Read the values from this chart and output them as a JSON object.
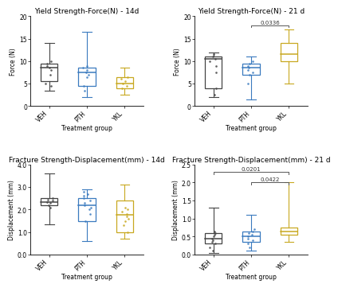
{
  "plots": [
    {
      "title": "Yield Strength-Force(N) - 14d",
      "ylabel": "Force (N)",
      "xlabel": "Treatment group",
      "ylim": [
        0,
        20
      ],
      "yticks": [
        0,
        5,
        10,
        15,
        20
      ],
      "groups": [
        "VEH",
        "PTH",
        "YKL"
      ],
      "colors": [
        "#444444",
        "#3a7abf",
        "#c8a820"
      ],
      "box_data": [
        {
          "median": 8.5,
          "q1": 5.5,
          "q3": 9.5,
          "whislo": 3.5,
          "whishi": 14.0,
          "points": [
            4.5,
            5.0,
            7.0,
            8.0,
            8.5,
            9.0,
            9.5,
            10.0
          ]
        },
        {
          "median": 7.5,
          "q1": 4.5,
          "q3": 8.5,
          "whislo": 2.0,
          "whishi": 16.5,
          "points": [
            3.5,
            4.5,
            6.5,
            7.0,
            7.5,
            8.0,
            8.5,
            9.0
          ]
        },
        {
          "median": 5.0,
          "q1": 4.0,
          "q3": 6.5,
          "whislo": 2.5,
          "whishi": 8.5,
          "points": [
            4.0,
            4.5,
            5.0,
            5.5,
            6.0,
            6.5
          ]
        }
      ],
      "significance": []
    },
    {
      "title": "Yield Strength-Force(N) - 21 d",
      "ylabel": "Force (N)",
      "xlabel": "Treatment group",
      "ylim": [
        0,
        20
      ],
      "yticks": [
        0,
        5,
        10,
        15,
        20
      ],
      "groups": [
        "VEH",
        "PTH",
        "YKL"
      ],
      "colors": [
        "#444444",
        "#3a7abf",
        "#c8a820"
      ],
      "box_data": [
        {
          "median": 10.5,
          "q1": 4.0,
          "q3": 11.0,
          "whislo": 2.0,
          "whishi": 12.0,
          "points": [
            2.5,
            4.0,
            7.5,
            9.0,
            10.0,
            10.5,
            11.0,
            11.5
          ]
        },
        {
          "median": 8.5,
          "q1": 7.0,
          "q3": 9.5,
          "whislo": 1.5,
          "whishi": 11.0,
          "points": [
            5.0,
            7.0,
            7.5,
            8.0,
            8.5,
            9.0,
            9.5,
            10.0
          ]
        },
        {
          "median": 11.5,
          "q1": 10.0,
          "q3": 14.0,
          "whislo": 5.0,
          "whishi": 17.0,
          "points": []
        }
      ],
      "significance": [
        {
          "group1": 1,
          "group2": 2,
          "y": 18.0,
          "label": "0.0336"
        }
      ]
    },
    {
      "title": "Fracture Strength-Displacement(mm) - 14d",
      "ylabel": "Displacement (mm)",
      "xlabel": "Treatment group",
      "ylim": [
        0.0,
        4.0
      ],
      "yticks": [
        0.0,
        1.0,
        2.0,
        3.0,
        4.0
      ],
      "groups": [
        "VEH",
        "PTH",
        "YKL"
      ],
      "colors": [
        "#444444",
        "#3a7abf",
        "#c8a820"
      ],
      "box_data": [
        {
          "median": 2.35,
          "q1": 2.2,
          "q3": 2.5,
          "whislo": 1.35,
          "whishi": 3.6,
          "points": [
            2.1,
            2.2,
            2.3,
            2.35,
            2.4,
            2.45,
            2.5
          ]
        },
        {
          "median": 2.2,
          "q1": 1.5,
          "q3": 2.5,
          "whislo": 0.6,
          "whishi": 2.9,
          "points": [
            1.5,
            1.8,
            2.0,
            2.1,
            2.2,
            2.3,
            2.4,
            2.5,
            2.6,
            2.7,
            2.8
          ]
        },
        {
          "median": 1.75,
          "q1": 1.0,
          "q3": 2.4,
          "whislo": 0.7,
          "whishi": 3.1,
          "points": [
            1.0,
            1.3,
            1.5,
            1.6,
            1.7,
            1.8,
            1.9,
            2.0,
            2.1
          ]
        }
      ],
      "significance": []
    },
    {
      "title": "Fracture Strength-Displacement(mm) - 21 d",
      "ylabel": "Displacement (mm)",
      "xlabel": "Treatment group",
      "ylim": [
        0.0,
        2.5
      ],
      "yticks": [
        0.0,
        0.5,
        1.0,
        1.5,
        2.0,
        2.5
      ],
      "groups": [
        "VEH",
        "PTH",
        "YKL"
      ],
      "colors": [
        "#444444",
        "#3a7abf",
        "#c8a820"
      ],
      "box_data": [
        {
          "median": 0.45,
          "q1": 0.3,
          "q3": 0.6,
          "whislo": 0.05,
          "whishi": 1.3,
          "points": [
            0.1,
            0.2,
            0.3,
            0.35,
            0.4,
            0.45,
            0.5,
            0.55,
            0.6,
            0.65
          ]
        },
        {
          "median": 0.5,
          "q1": 0.35,
          "q3": 0.65,
          "whislo": 0.1,
          "whishi": 1.1,
          "points": [
            0.2,
            0.3,
            0.4,
            0.45,
            0.5,
            0.55,
            0.6,
            0.65,
            0.7
          ]
        },
        {
          "median": 0.65,
          "q1": 0.55,
          "q3": 0.75,
          "whislo": 0.35,
          "whishi": 2.0,
          "points": []
        }
      ],
      "significance": [
        {
          "group1": 0,
          "group2": 2,
          "y": 2.3,
          "label": "0.0201"
        },
        {
          "group1": 1,
          "group2": 2,
          "y": 2.0,
          "label": "0.0422"
        }
      ]
    }
  ],
  "fig_bg": "#ffffff",
  "title_fontsize": 6.5,
  "label_fontsize": 5.5,
  "tick_fontsize": 5.5,
  "sig_fontsize": 5.0
}
